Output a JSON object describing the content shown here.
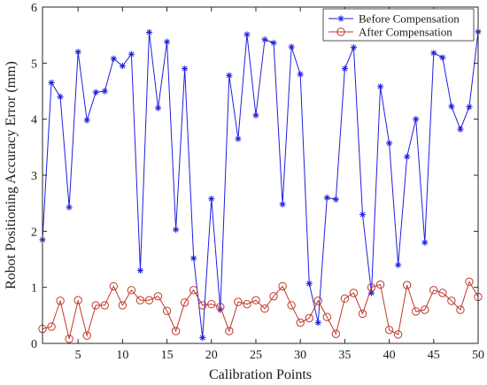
{
  "chart_data": {
    "type": "line",
    "xlabel": "Calibration Points",
    "ylabel": "Robot Positioning Accuracy Error (mm)",
    "xlim": [
      1,
      50
    ],
    "ylim": [
      0,
      6
    ],
    "xticks": [
      5,
      10,
      15,
      20,
      25,
      30,
      35,
      40,
      45,
      50
    ],
    "yticks": [
      0,
      1,
      2,
      3,
      4,
      5,
      6
    ],
    "grid": false,
    "legend_position": "top-right",
    "x": [
      1,
      2,
      3,
      4,
      5,
      6,
      7,
      8,
      9,
      10,
      11,
      12,
      13,
      14,
      15,
      16,
      17,
      18,
      19,
      20,
      21,
      22,
      23,
      24,
      25,
      26,
      27,
      28,
      29,
      30,
      31,
      32,
      33,
      34,
      35,
      36,
      37,
      38,
      39,
      40,
      41,
      42,
      43,
      44,
      45,
      46,
      47,
      48,
      49,
      50
    ],
    "series": [
      {
        "name": "Before Compensation",
        "color": "#1f1fe0",
        "marker": "star",
        "values": [
          1.85,
          4.65,
          4.4,
          2.43,
          5.2,
          3.98,
          4.48,
          4.5,
          5.08,
          4.95,
          5.16,
          1.3,
          5.55,
          4.2,
          5.38,
          2.03,
          4.9,
          1.52,
          0.1,
          2.58,
          0.6,
          4.78,
          3.65,
          5.51,
          4.07,
          5.42,
          5.36,
          2.48,
          5.29,
          4.8,
          1.07,
          0.37,
          2.6,
          2.57,
          4.9,
          5.28,
          2.3,
          0.9,
          4.58,
          3.57,
          1.4,
          3.33,
          4.0,
          1.8,
          5.18,
          5.1,
          4.23,
          3.82,
          4.22,
          5.56
        ]
      },
      {
        "name": "After Compensation",
        "color": "#c0392b",
        "marker": "circle",
        "values": [
          0.26,
          0.3,
          0.76,
          0.08,
          0.77,
          0.14,
          0.68,
          0.68,
          1.02,
          0.68,
          0.95,
          0.77,
          0.77,
          0.84,
          0.58,
          0.22,
          0.73,
          0.95,
          0.68,
          0.7,
          0.65,
          0.22,
          0.74,
          0.7,
          0.77,
          0.62,
          0.84,
          1.02,
          0.68,
          0.37,
          0.45,
          0.76,
          0.47,
          0.17,
          0.8,
          0.9,
          0.53,
          1.0,
          1.05,
          0.24,
          0.16,
          1.04,
          0.57,
          0.6,
          0.95,
          0.9,
          0.76,
          0.6,
          1.1,
          0.83
        ]
      }
    ]
  }
}
